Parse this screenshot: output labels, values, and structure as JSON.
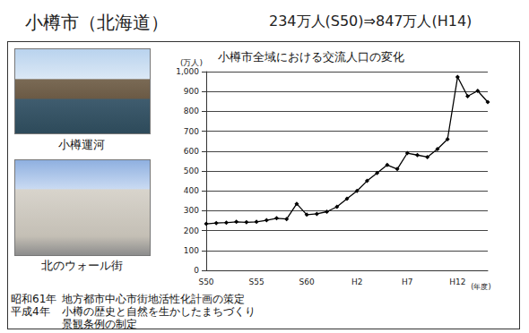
{
  "header": {
    "title": "小樽市（北海道）",
    "subtitle": "234万人(S50)⇒847万人(H14)"
  },
  "photos": [
    {
      "caption": "小樽運河"
    },
    {
      "caption": "北のウォール街"
    }
  ],
  "notes": [
    {
      "label": "昭和61年",
      "lines": [
        "地方都市中心市街地活性化計画の策定"
      ]
    },
    {
      "label": "平成4年",
      "lines": [
        "小樽の歴史と自然を生かしたまちづくり",
        "景観条例の制定"
      ]
    }
  ],
  "chart_data": {
    "type": "line",
    "title": "小樽市全域における交流人口の変化",
    "ylabel": "(万人)",
    "xlabel": "(年度)",
    "categories": [
      "S50",
      null,
      null,
      null,
      null,
      "S55",
      null,
      null,
      null,
      null,
      "S60",
      null,
      null,
      null,
      null,
      "H2",
      null,
      null,
      null,
      null,
      "H7",
      null,
      null,
      null,
      null,
      "H12",
      null,
      null,
      null
    ],
    "values": [
      234,
      238,
      240,
      244,
      242,
      244,
      252,
      262,
      258,
      335,
      280,
      284,
      295,
      320,
      360,
      400,
      450,
      490,
      530,
      510,
      590,
      580,
      570,
      610,
      660,
      973,
      876,
      903,
      847
    ],
    "color": "#000000",
    "marker": "diamond",
    "ylim": [
      0,
      1000
    ],
    "yticks": [
      0,
      100,
      200,
      300,
      400,
      500,
      600,
      700,
      800,
      900,
      {
        "value": 1000,
        "label": "1,000"
      }
    ],
    "grid": true
  }
}
